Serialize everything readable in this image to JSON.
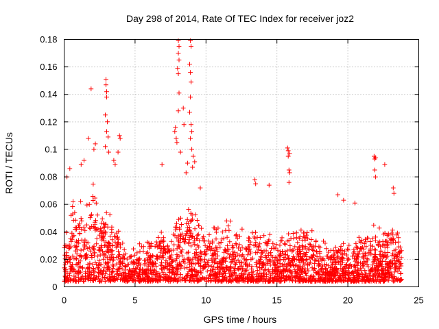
{
  "chart_data": {
    "type": "scatter",
    "title": "Day 298 of 2014, Rate Of TEC Index for receiver joz2",
    "xlabel": "GPS time / hours",
    "ylabel": "ROTI / TECUs",
    "xlim": [
      0,
      25
    ],
    "ylim": [
      0,
      0.18
    ],
    "xticks": [
      0,
      5,
      10,
      15,
      20,
      25
    ],
    "xtick_labels": [
      "0",
      "5",
      "10",
      "15",
      "20",
      "25"
    ],
    "yticks": [
      0,
      0.02,
      0.04,
      0.06,
      0.08,
      0.1,
      0.12,
      0.14,
      0.16,
      0.18
    ],
    "ytick_labels": [
      "0",
      "0.02",
      "0.04",
      "0.06",
      "0.08",
      "0.1",
      "0.12",
      "0.14",
      "0.16",
      "0.18"
    ],
    "grid": true,
    "marker": "plus",
    "marker_color": "#ff0000",
    "density_envelope": {
      "x": [
        0,
        0.5,
        1,
        1.5,
        2,
        2.5,
        3,
        3.5,
        4,
        4.5,
        5,
        5.5,
        6,
        6.5,
        7,
        7.5,
        8,
        8.5,
        9,
        9.5,
        10,
        10.5,
        11,
        11.5,
        12,
        12.5,
        13,
        13.5,
        14,
        14.5,
        15,
        15.5,
        16,
        16.5,
        17,
        17.5,
        18,
        18.5,
        19,
        19.5,
        20,
        20.5,
        21,
        21.5,
        22,
        22.5,
        23,
        23.5,
        23.8
      ],
      "upper": [
        0.035,
        0.07,
        0.075,
        0.065,
        0.085,
        0.07,
        0.06,
        0.05,
        0.04,
        0.025,
        0.03,
        0.035,
        0.035,
        0.045,
        0.04,
        0.045,
        0.065,
        0.06,
        0.07,
        0.055,
        0.045,
        0.05,
        0.045,
        0.05,
        0.055,
        0.045,
        0.04,
        0.045,
        0.045,
        0.04,
        0.035,
        0.04,
        0.045,
        0.045,
        0.045,
        0.045,
        0.04,
        0.035,
        0.035,
        0.04,
        0.03,
        0.035,
        0.04,
        0.045,
        0.05,
        0.045,
        0.05,
        0.05,
        0.03
      ]
    },
    "outliers": [
      {
        "x": 1.9,
        "y": 0.144
      },
      {
        "x": 2.95,
        "y": 0.151
      },
      {
        "x": 2.95,
        "y": 0.147
      },
      {
        "x": 3.0,
        "y": 0.142
      },
      {
        "x": 3.0,
        "y": 0.138
      },
      {
        "x": 2.9,
        "y": 0.125
      },
      {
        "x": 3.05,
        "y": 0.12
      },
      {
        "x": 3.0,
        "y": 0.113
      },
      {
        "x": 3.1,
        "y": 0.109
      },
      {
        "x": 2.9,
        "y": 0.102
      },
      {
        "x": 3.15,
        "y": 0.098
      },
      {
        "x": 1.7,
        "y": 0.108
      },
      {
        "x": 2.2,
        "y": 0.104
      },
      {
        "x": 2.1,
        "y": 0.1
      },
      {
        "x": 3.9,
        "y": 0.11
      },
      {
        "x": 3.95,
        "y": 0.108
      },
      {
        "x": 3.8,
        "y": 0.098
      },
      {
        "x": 3.5,
        "y": 0.092
      },
      {
        "x": 3.6,
        "y": 0.089
      },
      {
        "x": 1.4,
        "y": 0.092
      },
      {
        "x": 1.2,
        "y": 0.089
      },
      {
        "x": 0.4,
        "y": 0.086
      },
      {
        "x": 0.2,
        "y": 0.08
      },
      {
        "x": 8.05,
        "y": 0.179
      },
      {
        "x": 8.1,
        "y": 0.175
      },
      {
        "x": 8.05,
        "y": 0.17
      },
      {
        "x": 8.1,
        "y": 0.165
      },
      {
        "x": 8.0,
        "y": 0.159
      },
      {
        "x": 8.05,
        "y": 0.155
      },
      {
        "x": 8.1,
        "y": 0.141
      },
      {
        "x": 8.05,
        "y": 0.128
      },
      {
        "x": 7.85,
        "y": 0.116
      },
      {
        "x": 7.8,
        "y": 0.113
      },
      {
        "x": 7.9,
        "y": 0.108
      },
      {
        "x": 7.95,
        "y": 0.105
      },
      {
        "x": 8.2,
        "y": 0.098
      },
      {
        "x": 8.4,
        "y": 0.13
      },
      {
        "x": 8.45,
        "y": 0.118
      },
      {
        "x": 8.9,
        "y": 0.179
      },
      {
        "x": 8.95,
        "y": 0.175
      },
      {
        "x": 8.85,
        "y": 0.162
      },
      {
        "x": 8.9,
        "y": 0.156
      },
      {
        "x": 8.95,
        "y": 0.149
      },
      {
        "x": 8.9,
        "y": 0.138
      },
      {
        "x": 8.85,
        "y": 0.127
      },
      {
        "x": 8.95,
        "y": 0.118
      },
      {
        "x": 9.0,
        "y": 0.113
      },
      {
        "x": 8.9,
        "y": 0.108
      },
      {
        "x": 9.0,
        "y": 0.1
      },
      {
        "x": 9.1,
        "y": 0.095
      },
      {
        "x": 9.2,
        "y": 0.091
      },
      {
        "x": 9.05,
        "y": 0.087
      },
      {
        "x": 8.7,
        "y": 0.09
      },
      {
        "x": 8.6,
        "y": 0.083
      },
      {
        "x": 6.9,
        "y": 0.089
      },
      {
        "x": 9.6,
        "y": 0.072
      },
      {
        "x": 15.75,
        "y": 0.101
      },
      {
        "x": 15.8,
        "y": 0.099
      },
      {
        "x": 15.9,
        "y": 0.097
      },
      {
        "x": 15.8,
        "y": 0.095
      },
      {
        "x": 15.85,
        "y": 0.085
      },
      {
        "x": 15.9,
        "y": 0.083
      },
      {
        "x": 15.85,
        "y": 0.076
      },
      {
        "x": 14.45,
        "y": 0.074
      },
      {
        "x": 13.45,
        "y": 0.078
      },
      {
        "x": 13.5,
        "y": 0.075
      },
      {
        "x": 21.85,
        "y": 0.095
      },
      {
        "x": 21.9,
        "y": 0.093
      },
      {
        "x": 21.95,
        "y": 0.094
      },
      {
        "x": 21.9,
        "y": 0.085
      },
      {
        "x": 21.95,
        "y": 0.08
      },
      {
        "x": 22.6,
        "y": 0.089
      },
      {
        "x": 23.2,
        "y": 0.072
      },
      {
        "x": 23.25,
        "y": 0.068
      },
      {
        "x": 19.3,
        "y": 0.067
      },
      {
        "x": 20.5,
        "y": 0.061
      },
      {
        "x": 19.7,
        "y": 0.063
      }
    ]
  }
}
